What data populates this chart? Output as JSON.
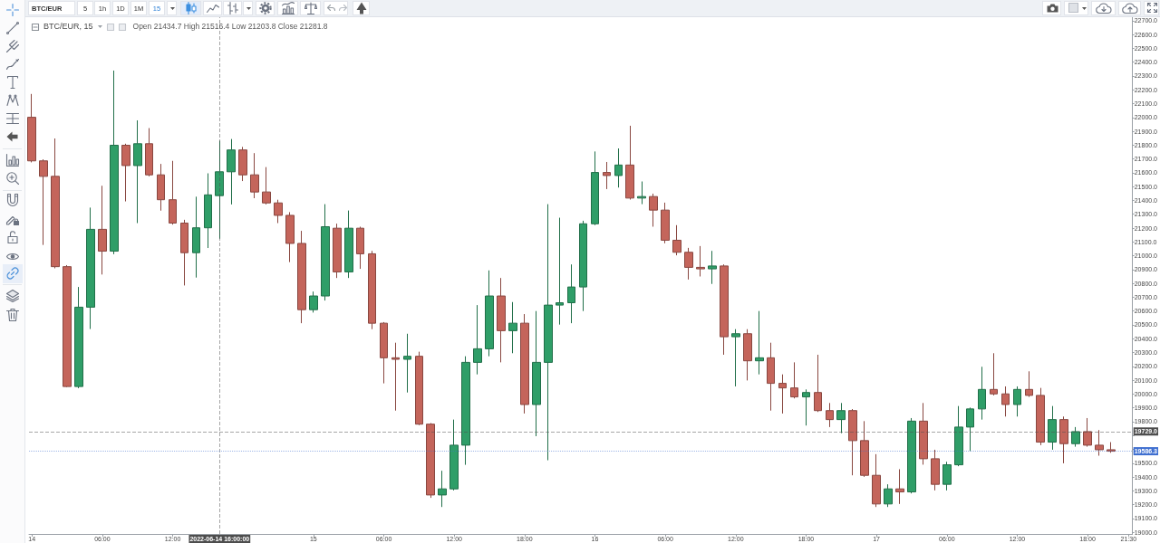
{
  "chart_data": {
    "type": "candlestick",
    "title": "BTC/EUR, 15",
    "subtitle": "Open 21434.7 High 21516.4 Low 21203.8 Close 21281.8",
    "annotations": [
      "BTC/EUR",
      "5",
      "1h",
      "1D",
      "1M",
      "15"
    ],
    "x": [
      "2022-06-14T00:00",
      "2022-06-14T01:00",
      "2022-06-14T02:00",
      "2022-06-14T03:00",
      "2022-06-14T04:00",
      "2022-06-14T05:00",
      "2022-06-14T06:00",
      "2022-06-14T07:00",
      "2022-06-14T08:00",
      "2022-06-14T09:00",
      "2022-06-14T10:00",
      "2022-06-14T11:00",
      "2022-06-14T12:00",
      "2022-06-14T13:00",
      "2022-06-14T14:00",
      "2022-06-14T15:00",
      "2022-06-14T16:00",
      "2022-06-14T17:00",
      "2022-06-14T18:00",
      "2022-06-14T19:00",
      "2022-06-14T20:00",
      "2022-06-14T21:00",
      "2022-06-14T22:00",
      "2022-06-14T23:00",
      "2022-06-15T00:00",
      "2022-06-15T01:00",
      "2022-06-15T02:00",
      "2022-06-15T03:00",
      "2022-06-15T04:00",
      "2022-06-15T05:00",
      "2022-06-15T06:00",
      "2022-06-15T07:00",
      "2022-06-15T08:00",
      "2022-06-15T09:00",
      "2022-06-15T10:00",
      "2022-06-15T11:00",
      "2022-06-15T12:00",
      "2022-06-15T13:00",
      "2022-06-15T14:00",
      "2022-06-15T15:00",
      "2022-06-15T16:00",
      "2022-06-15T17:00",
      "2022-06-15T18:00",
      "2022-06-15T19:00",
      "2022-06-15T20:00",
      "2022-06-15T21:00",
      "2022-06-15T22:00",
      "2022-06-15T23:00",
      "2022-06-16T00:00",
      "2022-06-16T01:00",
      "2022-06-16T02:00",
      "2022-06-16T03:00",
      "2022-06-16T04:00",
      "2022-06-16T05:00",
      "2022-06-16T06:00",
      "2022-06-16T07:00",
      "2022-06-16T08:00",
      "2022-06-16T09:00",
      "2022-06-16T10:00",
      "2022-06-16T11:00",
      "2022-06-16T12:00",
      "2022-06-16T13:00",
      "2022-06-16T14:00",
      "2022-06-16T15:00",
      "2022-06-16T16:00",
      "2022-06-16T17:00",
      "2022-06-16T18:00",
      "2022-06-16T19:00",
      "2022-06-16T20:00",
      "2022-06-16T21:00",
      "2022-06-16T22:00",
      "2022-06-16T23:00",
      "2022-06-17T00:00",
      "2022-06-17T01:00",
      "2022-06-17T02:00",
      "2022-06-17T03:00",
      "2022-06-17T04:00",
      "2022-06-17T05:00",
      "2022-06-17T06:00",
      "2022-06-17T07:00",
      "2022-06-17T08:00",
      "2022-06-17T09:00",
      "2022-06-17T10:00",
      "2022-06-17T11:00",
      "2022-06-17T12:00",
      "2022-06-17T13:00",
      "2022-06-17T14:00",
      "2022-06-17T15:00",
      "2022-06-17T16:00",
      "2022-06-17T17:00",
      "2022-06-17T18:00",
      "2022-06-17T19:00",
      "2022-06-17T20:00"
    ],
    "ohlc": [
      [
        22001,
        22170,
        21675,
        21686
      ],
      [
        21686,
        21697,
        21078,
        21574
      ],
      [
        21574,
        21848,
        20909,
        20921
      ],
      [
        20921,
        20932,
        20050,
        20054
      ],
      [
        20054,
        20774,
        20042,
        20628
      ],
      [
        20628,
        21348,
        20470,
        21191
      ],
      [
        21191,
        21506,
        20864,
        21033
      ],
      [
        21033,
        22339,
        21011,
        21799
      ],
      [
        21799,
        21810,
        21393,
        21652
      ],
      [
        21652,
        21979,
        21236,
        21810
      ],
      [
        21810,
        21923,
        21574,
        21585
      ],
      [
        21585,
        21664,
        21326,
        21405
      ],
      [
        21405,
        21686,
        21225,
        21236
      ],
      [
        21236,
        21260,
        20785,
        21022
      ],
      [
        21022,
        21427,
        20842,
        21202
      ],
      [
        21202,
        21596,
        21056,
        21440
      ],
      [
        21434.7,
        21832,
        21123,
        21607
      ],
      [
        21607,
        21844,
        21371,
        21765
      ],
      [
        21765,
        21787,
        21540,
        21585
      ],
      [
        21585,
        21742,
        21416,
        21461
      ],
      [
        21461,
        21641,
        21371,
        21382
      ],
      [
        21382,
        21405,
        21236,
        21292
      ],
      [
        21292,
        21315,
        20954,
        21089
      ],
      [
        21089,
        21180,
        20512,
        20610
      ],
      [
        20610,
        20741,
        20589,
        20709
      ],
      [
        20709,
        21373,
        20676,
        21210
      ],
      [
        21199,
        21232,
        20839,
        20883
      ],
      [
        20883,
        21327,
        20839,
        21199
      ],
      [
        21199,
        21210,
        20905,
        21014
      ],
      [
        21014,
        21035,
        20469,
        20512
      ],
      [
        20512,
        20520,
        20077,
        20262
      ],
      [
        20262,
        20371,
        19880,
        20251
      ],
      [
        20251,
        20436,
        20011,
        20273
      ],
      [
        20273,
        20306,
        19775,
        19782
      ],
      [
        19782,
        19790,
        19249,
        19270
      ],
      [
        19270,
        19445,
        19183,
        19314
      ],
      [
        19314,
        19815,
        19303,
        19630
      ],
      [
        19630,
        20273,
        19488,
        20229
      ],
      [
        20229,
        20643,
        20142,
        20327
      ],
      [
        20327,
        20894,
        20273,
        20709
      ],
      [
        20709,
        20839,
        20229,
        20458
      ],
      [
        20458,
        20665,
        20295,
        20512
      ],
      [
        20512,
        20578,
        19859,
        19924
      ],
      [
        19924,
        20600,
        19695,
        20229
      ],
      [
        20229,
        21373,
        19521,
        20643
      ],
      [
        20643,
        21275,
        20502,
        20660
      ],
      [
        20660,
        20937,
        20512,
        20774
      ],
      [
        20774,
        21253,
        20600,
        21231
      ],
      [
        21231,
        21754,
        21221,
        21602
      ],
      [
        21602,
        21678,
        21482,
        21580
      ],
      [
        21580,
        21776,
        21493,
        21656
      ],
      [
        21656,
        21940,
        21406,
        21417
      ],
      [
        21417,
        21537,
        21373,
        21428
      ],
      [
        21428,
        21449,
        21210,
        21330
      ],
      [
        21330,
        21384,
        21090,
        21112
      ],
      [
        21112,
        21221,
        21003,
        21025
      ],
      [
        21025,
        21057,
        20828,
        20916
      ],
      [
        20916,
        21070,
        20850,
        20905
      ],
      [
        20905,
        21035,
        20796,
        20926
      ],
      [
        20926,
        20937,
        20284,
        20414
      ],
      [
        20414,
        20469,
        20055,
        20436
      ],
      [
        20436,
        20469,
        20098,
        20240
      ],
      [
        20240,
        20600,
        20142,
        20262
      ],
      [
        20262,
        20371,
        19880,
        20077
      ],
      [
        20077,
        20142,
        19859,
        20044
      ],
      [
        20044,
        20229,
        19968,
        19979
      ],
      [
        19979,
        20033,
        19772,
        20011
      ],
      [
        20011,
        20284,
        19870,
        19880
      ],
      [
        19880,
        19935,
        19761,
        19815
      ],
      [
        19815,
        19935,
        19717,
        19880
      ],
      [
        19880,
        19891,
        19412,
        19663
      ],
      [
        19663,
        19804,
        19401,
        19412
      ],
      [
        19412,
        19565,
        19183,
        19205
      ],
      [
        19205,
        19347,
        19183,
        19314
      ],
      [
        19314,
        19456,
        19205,
        19292
      ],
      [
        19292,
        19826,
        19281,
        19804
      ],
      [
        19804,
        19935,
        19489,
        19532
      ],
      [
        19532,
        19597,
        19303,
        19347
      ],
      [
        19347,
        19510,
        19303,
        19488
      ],
      [
        19488,
        19913,
        19478,
        19761
      ],
      [
        19761,
        19902,
        19586,
        19892
      ],
      [
        19892,
        20197,
        19815,
        20033
      ],
      [
        20033,
        20295,
        19990,
        20001
      ],
      [
        20001,
        20055,
        19837,
        19924
      ],
      [
        19924,
        20055,
        19837,
        20033
      ],
      [
        20033,
        20164,
        19979,
        19990
      ],
      [
        19990,
        20044,
        19630,
        19652
      ],
      [
        19652,
        19913,
        19597,
        19815
      ],
      [
        19815,
        19837,
        19499,
        19641
      ],
      [
        19641,
        19761,
        19619,
        19728
      ],
      [
        19728,
        19826,
        19619,
        19630
      ],
      [
        19630,
        19739,
        19554,
        19597
      ],
      [
        19597,
        19652,
        19575,
        19586.3
      ]
    ],
    "colors": [
      "#c4655b",
      "#c4655b",
      "#c4655b",
      "#c4655b",
      "#2f9e68",
      "#2f9e68",
      "#c4655b",
      "#2f9e68",
      "#c4655b",
      "#2f9e68",
      "#c4655b",
      "#c4655b",
      "#c4655b",
      "#c4655b",
      "#2f9e68",
      "#2f9e68",
      "#2f9e68",
      "#2f9e68",
      "#c4655b",
      "#c4655b",
      "#c4655b",
      "#c4655b",
      "#c4655b",
      "#c4655b",
      "#2f9e68",
      "#2f9e68",
      "#c4655b",
      "#2f9e68",
      "#c4655b",
      "#c4655b",
      "#c4655b",
      "#c4655b",
      "#2f9e68",
      "#c4655b",
      "#c4655b",
      "#2f9e68",
      "#2f9e68",
      "#2f9e68",
      "#2f9e68",
      "#2f9e68",
      "#c4655b",
      "#2f9e68",
      "#c4655b",
      "#2f9e68",
      "#2f9e68",
      "#2f9e68",
      "#2f9e68",
      "#2f9e68",
      "#2f9e68",
      "#c4655b",
      "#2f9e68",
      "#c4655b",
      "#2f9e68",
      "#c4655b",
      "#c4655b",
      "#c4655b",
      "#c4655b",
      "#c4655b",
      "#2f9e68",
      "#c4655b",
      "#2f9e68",
      "#c4655b",
      "#2f9e68",
      "#c4655b",
      "#c4655b",
      "#c4655b",
      "#2f9e68",
      "#c4655b",
      "#c4655b",
      "#2f9e68",
      "#c4655b",
      "#c4655b",
      "#c4655b",
      "#2f9e68",
      "#c4655b",
      "#2f9e68",
      "#c4655b",
      "#c4655b",
      "#2f9e68",
      "#2f9e68",
      "#2f9e68",
      "#2f9e68",
      "#c4655b",
      "#c4655b",
      "#2f9e68",
      "#c4655b",
      "#c4655b",
      "#2f9e68",
      "#c4655b",
      "#2f9e68",
      "#c4655b",
      "#c4655b",
      "#c4655b"
    ],
    "xlim": [
      "2022-06-13T23:45",
      "2022-06-17T21:50"
    ],
    "xticks": [
      {
        "value": "2022-06-14T00:00",
        "label": "14"
      },
      {
        "value": "2022-06-14T06:00",
        "label": "06:00"
      },
      {
        "value": "2022-06-14T12:00",
        "label": "12:00"
      },
      {
        "value": "2022-06-14T18:00",
        "label": null
      },
      {
        "value": "2022-06-15T00:00",
        "label": "15"
      },
      {
        "value": "2022-06-15T06:00",
        "label": "06:00"
      },
      {
        "value": "2022-06-15T12:00",
        "label": "12:00"
      },
      {
        "value": "2022-06-15T18:00",
        "label": "18:00"
      },
      {
        "value": "2022-06-16T00:00",
        "label": "16"
      },
      {
        "value": "2022-06-16T06:00",
        "label": "06:00"
      },
      {
        "value": "2022-06-16T12:00",
        "label": "12:00"
      },
      {
        "value": "2022-06-16T18:00",
        "label": "18:00"
      },
      {
        "value": "2022-06-17T00:00",
        "label": "17"
      },
      {
        "value": "2022-06-17T06:00",
        "label": "06:00"
      },
      {
        "value": "2022-06-17T12:00",
        "label": "12:00"
      },
      {
        "value": "2022-06-17T18:00",
        "label": "18:00"
      },
      {
        "value": "2022-06-17T21:30",
        "label": "21:30"
      }
    ],
    "ylim": [
      18988,
      22725
    ],
    "yticks": [
      {
        "value": 19000,
        "label": "19000.0"
      },
      {
        "value": 19100,
        "label": "19100.0"
      },
      {
        "value": 19200,
        "label": "19200.0"
      },
      {
        "value": 19300,
        "label": "19300.0"
      },
      {
        "value": 19400,
        "label": "19400.0"
      },
      {
        "value": 19500,
        "label": "19500.0"
      },
      {
        "value": 19600,
        "label": null
      },
      {
        "value": 19700,
        "label": null
      },
      {
        "value": 19800,
        "label": "19800.0"
      },
      {
        "value": 19900,
        "label": "19900.0"
      },
      {
        "value": 20000,
        "label": "20000.0"
      },
      {
        "value": 20100,
        "label": "20100.0"
      },
      {
        "value": 20200,
        "label": "20200.0"
      },
      {
        "value": 20300,
        "label": "20300.0"
      },
      {
        "value": 20400,
        "label": "20400.0"
      },
      {
        "value": 20500,
        "label": "20500.0"
      },
      {
        "value": 20600,
        "label": "20600.0"
      },
      {
        "value": 20700,
        "label": "20700.0"
      },
      {
        "value": 20800,
        "label": "20800.0"
      },
      {
        "value": 20900,
        "label": "20900.0"
      },
      {
        "value": 21000,
        "label": "21000.0"
      },
      {
        "value": 21100,
        "label": "21100.0"
      },
      {
        "value": 21200,
        "label": "21200.0"
      },
      {
        "value": 21300,
        "label": "21300.0"
      },
      {
        "value": 21400,
        "label": "21400.0"
      },
      {
        "value": 21500,
        "label": "21500.0"
      },
      {
        "value": 21600,
        "label": "21600.0"
      },
      {
        "value": 21700,
        "label": "21700.0"
      },
      {
        "value": 21800,
        "label": "21800.0"
      },
      {
        "value": 21900,
        "label": "21900.0"
      },
      {
        "value": 22000,
        "label": "22000.0"
      },
      {
        "value": 22100,
        "label": "22100.0"
      },
      {
        "value": 22200,
        "label": "22200.0"
      },
      {
        "value": 22300,
        "label": "22300.0"
      },
      {
        "value": 22400,
        "label": "22400.0"
      },
      {
        "value": 22500,
        "label": "22500.0"
      },
      {
        "value": 22600,
        "label": "22600.0"
      },
      {
        "value": 22700,
        "label": "22700.0"
      }
    ],
    "ref_lines": [
      {
        "axis": "x",
        "value": "2022-06-14T16:00",
        "label": "2022-06-14 16:00:00",
        "color": "#4d4d4d",
        "line_style": "dashed"
      },
      {
        "axis": "y",
        "value": 19729,
        "label": "19729.0",
        "color": "#4d4d4d",
        "line_style": "dashed"
      },
      {
        "axis": "y",
        "value": 19586.3,
        "label": "19586.3",
        "color": "#3f6fd0",
        "line_style": "dotted"
      }
    ],
    "grid": false
  }
}
